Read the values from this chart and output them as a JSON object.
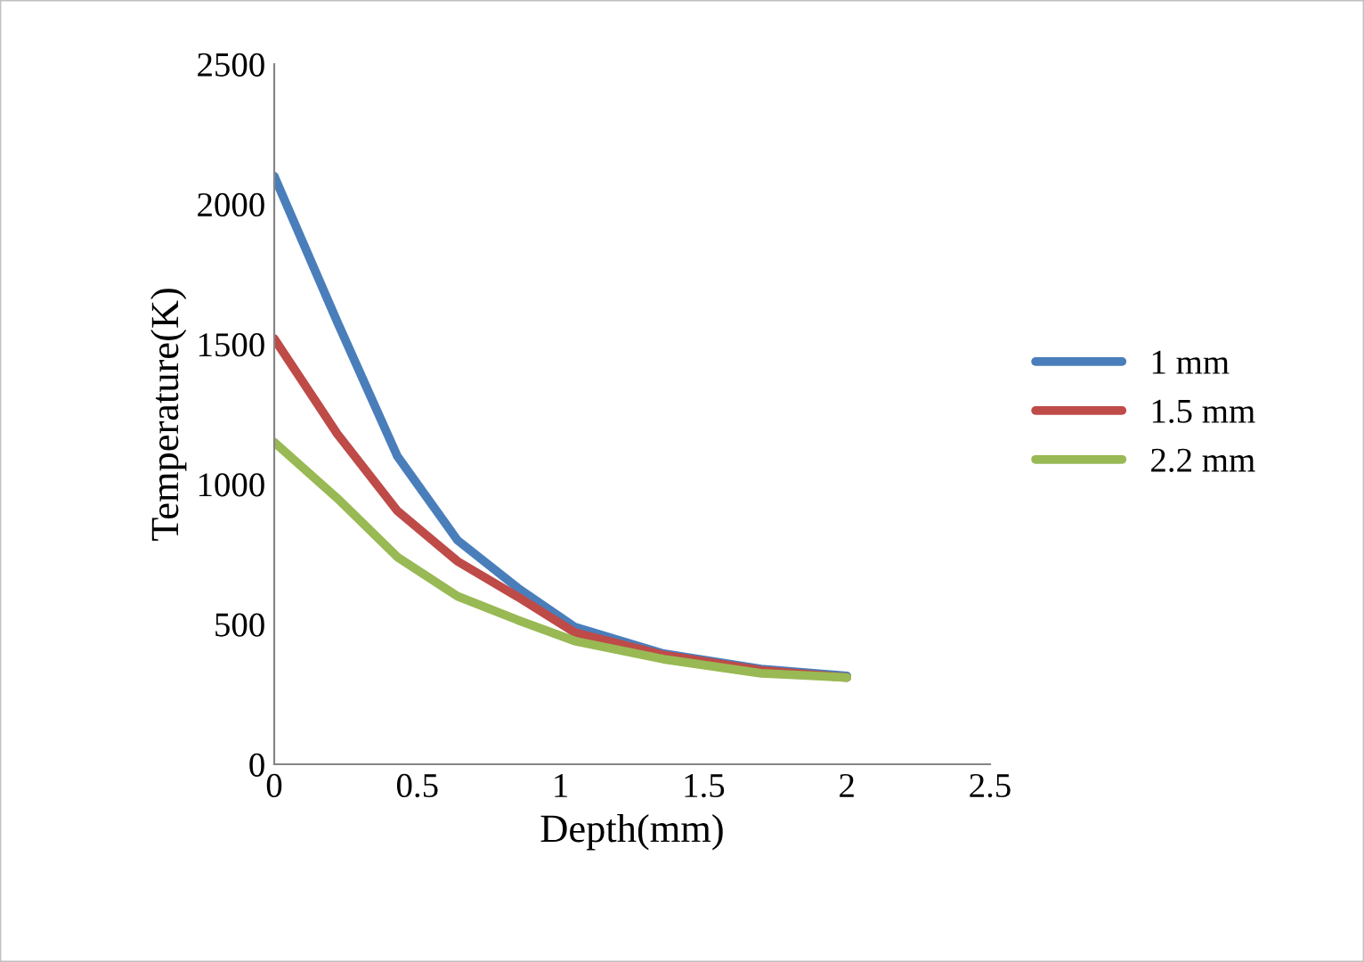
{
  "chart_data": {
    "type": "line",
    "xlabel": "Depth(mm)",
    "ylabel": "Temperature(K)",
    "x": [
      0,
      0.22,
      0.43,
      0.64,
      0.85,
      1.05,
      1.36,
      1.7,
      2.0
    ],
    "series": [
      {
        "name": "1 mm",
        "color": "#4a7ebb",
        "values": [
          2100,
          1580,
          1100,
          800,
          630,
          490,
          395,
          340,
          315
        ]
      },
      {
        "name": "1.5 mm",
        "color": "#be4b48",
        "values": [
          1520,
          1180,
          905,
          725,
          598,
          470,
          390,
          335,
          310
        ]
      },
      {
        "name": "2.2 mm",
        "color": "#98b954",
        "values": [
          1150,
          950,
          740,
          600,
          515,
          440,
          375,
          325,
          310
        ]
      }
    ],
    "xlim": [
      0,
      2.5
    ],
    "xticks": [
      0,
      0.5,
      1,
      1.5,
      2,
      2.5
    ],
    "ylim": [
      0,
      2500
    ],
    "yticks": [
      0,
      500,
      1000,
      1500,
      2000,
      2500
    ],
    "grid": false,
    "legend": "right",
    "marker": "none",
    "line_style": "solid"
  }
}
